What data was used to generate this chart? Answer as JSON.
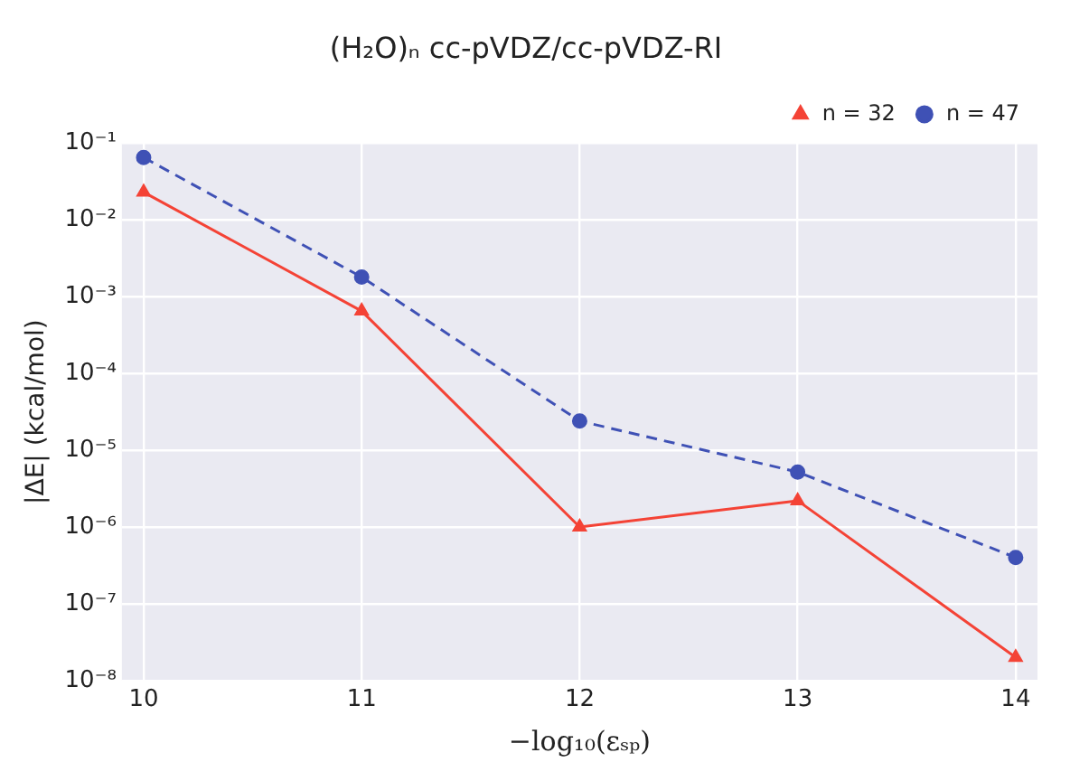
{
  "chart_data": {
    "type": "line",
    "title": "(H₂O)ₙ cc-pVDZ/cc-pVDZ-RI",
    "xlabel": "−log₁₀(εₛₚ)",
    "ylabel": "|ΔE| (kcal/mol)",
    "x": [
      10,
      11,
      12,
      13,
      14
    ],
    "series": [
      {
        "name": "n = 32",
        "color": "#f44336",
        "values": [
          0.023,
          0.00065,
          1e-06,
          2.2e-06,
          2e-08
        ],
        "marker": "triangle",
        "line_style": "solid"
      },
      {
        "name": "n = 47",
        "color": "#3f51b5",
        "values": [
          0.065,
          0.0018,
          2.4e-05,
          5.2e-06,
          4e-07
        ],
        "marker": "circle",
        "line_style": "dashed"
      }
    ],
    "log": "y",
    "xlim": [
      9.9,
      14.1
    ],
    "xticks": [
      10,
      11,
      12,
      13,
      14
    ],
    "ylim": [
      1e-08,
      0.1
    ],
    "yticks": [
      {
        "value": 1e-08,
        "label": "10⁻⁸"
      },
      {
        "value": 1e-07,
        "label": "10⁻⁷"
      },
      {
        "value": 1e-06,
        "label": "10⁻⁶"
      },
      {
        "value": 1e-05,
        "label": "10⁻⁵"
      },
      {
        "value": 0.0001,
        "label": "10⁻⁴"
      },
      {
        "value": 0.001,
        "label": "10⁻³"
      },
      {
        "value": 0.01,
        "label": "10⁻²"
      },
      {
        "value": 0.1,
        "label": "10⁻¹"
      }
    ],
    "grid": true,
    "legend": "top right"
  }
}
